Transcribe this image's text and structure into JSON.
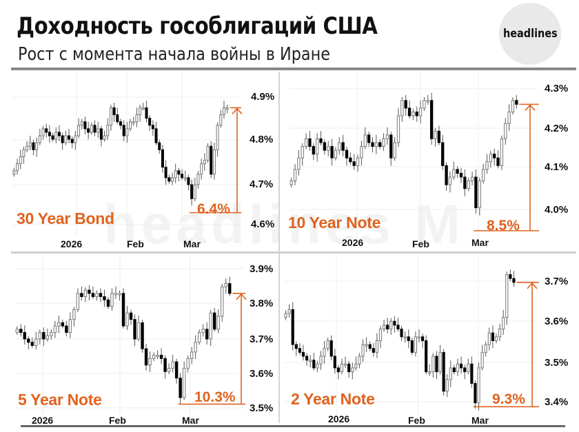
{
  "header": {
    "title": "Доходность гособлигаций США",
    "subtitle": "Рост с момента начала войны в Иране",
    "logo_text": "headlines",
    "watermark": "headlines M"
  },
  "colors": {
    "accent": "#e0621e",
    "up_candle": "#ffffff",
    "down_candle": "#000000",
    "grid": "#eeeeee"
  },
  "chart_data": [
    {
      "type": "candlestick",
      "title": "30 Year Bond",
      "x_ticks": [
        "2026",
        "Feb",
        "Mar"
      ],
      "y_ticks": [
        "4.9%",
        "4.8%",
        "4.7%",
        "4.6%"
      ],
      "ylim": [
        4.55,
        4.96
      ],
      "annotation": {
        "label": "6.4%",
        "from": 4.6,
        "to": 4.9
      },
      "closes": [
        4.72,
        4.74,
        4.76,
        4.78,
        4.79,
        4.8,
        4.78,
        4.8,
        4.82,
        4.84,
        4.83,
        4.82,
        4.81,
        4.83,
        4.82,
        4.8,
        4.82,
        4.81,
        4.8,
        4.82,
        4.85,
        4.86,
        4.84,
        4.83,
        4.85,
        4.83,
        4.84,
        4.81,
        4.82,
        4.85,
        4.9,
        4.88,
        4.86,
        4.85,
        4.82,
        4.84,
        4.86,
        4.86,
        4.88,
        4.9,
        4.9,
        4.87,
        4.85,
        4.84,
        4.8,
        4.78,
        4.73,
        4.7,
        4.69,
        4.7,
        4.72,
        4.71,
        4.7,
        4.7,
        4.68,
        4.64,
        4.68,
        4.71,
        4.74,
        4.75,
        4.79,
        4.71,
        4.78,
        4.85,
        4.88,
        4.9,
        4.9
      ]
    },
    {
      "type": "candlestick",
      "title": "10 Year Note",
      "x_ticks": [
        "2026",
        "Feb",
        "Mar"
      ],
      "y_ticks": [
        "4.3%",
        "4.2%",
        "4.1%",
        "4.0%"
      ],
      "ylim": [
        3.92,
        4.33
      ],
      "annotation": {
        "label": "8.5%",
        "from": 3.94,
        "to": 4.27
      },
      "closes": [
        4.07,
        4.1,
        4.13,
        4.16,
        4.18,
        4.16,
        4.14,
        4.18,
        4.17,
        4.15,
        4.16,
        4.13,
        4.15,
        4.17,
        4.15,
        4.13,
        4.12,
        4.11,
        4.13,
        4.16,
        4.19,
        4.17,
        4.16,
        4.17,
        4.16,
        4.18,
        4.19,
        4.13,
        4.17,
        4.24,
        4.28,
        4.26,
        4.24,
        4.25,
        4.24,
        4.26,
        4.28,
        4.28,
        4.18,
        4.2,
        4.17,
        4.11,
        4.06,
        4.08,
        4.1,
        4.09,
        4.08,
        4.05,
        4.07,
        4.08,
        4.0,
        4.07,
        4.1,
        4.12,
        4.14,
        4.13,
        4.11,
        4.18,
        4.22,
        4.25,
        4.28,
        4.27
      ]
    },
    {
      "type": "candlestick",
      "title": "5 Year Note",
      "x_ticks": [
        "2026",
        "Feb",
        "Mar"
      ],
      "y_ticks": [
        "3.9%",
        "3.8%",
        "3.7%",
        "3.6%",
        "3.5%"
      ],
      "ylim": [
        3.48,
        3.92
      ],
      "annotation": {
        "label": "10.3%",
        "from": 3.5,
        "to": 3.84
      },
      "closes": [
        3.73,
        3.72,
        3.7,
        3.69,
        3.68,
        3.7,
        3.72,
        3.7,
        3.71,
        3.72,
        3.74,
        3.75,
        3.74,
        3.72,
        3.76,
        3.79,
        3.84,
        3.83,
        3.85,
        3.84,
        3.83,
        3.84,
        3.83,
        3.82,
        3.8,
        3.84,
        3.84,
        3.84,
        3.74,
        3.78,
        3.76,
        3.7,
        3.75,
        3.67,
        3.62,
        3.64,
        3.65,
        3.65,
        3.64,
        3.6,
        3.61,
        3.63,
        3.58,
        3.52,
        3.61,
        3.64,
        3.66,
        3.69,
        3.72,
        3.73,
        3.7,
        3.78,
        3.73,
        3.77,
        3.86,
        3.87,
        3.84
      ]
    },
    {
      "type": "candlestick",
      "title": "2 Year Note",
      "x_ticks": [
        "2026",
        "Feb",
        "Mar"
      ],
      "y_ticks": [
        "3.7%",
        "3.6%",
        "3.5%",
        "3.4%"
      ],
      "ylim": [
        3.37,
        3.76
      ],
      "annotation": {
        "label": "9.3%",
        "from": 3.38,
        "to": 3.7
      },
      "closes": [
        3.62,
        3.63,
        3.54,
        3.53,
        3.52,
        3.51,
        3.5,
        3.5,
        3.48,
        3.49,
        3.51,
        3.53,
        3.55,
        3.51,
        3.48,
        3.47,
        3.49,
        3.49,
        3.47,
        3.48,
        3.49,
        3.51,
        3.54,
        3.54,
        3.53,
        3.52,
        3.55,
        3.58,
        3.59,
        3.58,
        3.6,
        3.59,
        3.58,
        3.56,
        3.56,
        3.55,
        3.52,
        3.56,
        3.56,
        3.55,
        3.47,
        3.47,
        3.51,
        3.47,
        3.52,
        3.42,
        3.45,
        3.48,
        3.47,
        3.49,
        3.48,
        3.47,
        3.49,
        3.44,
        3.39,
        3.48,
        3.52,
        3.54,
        3.57,
        3.55,
        3.56,
        3.58,
        3.61,
        3.72,
        3.71,
        3.7
      ]
    }
  ]
}
